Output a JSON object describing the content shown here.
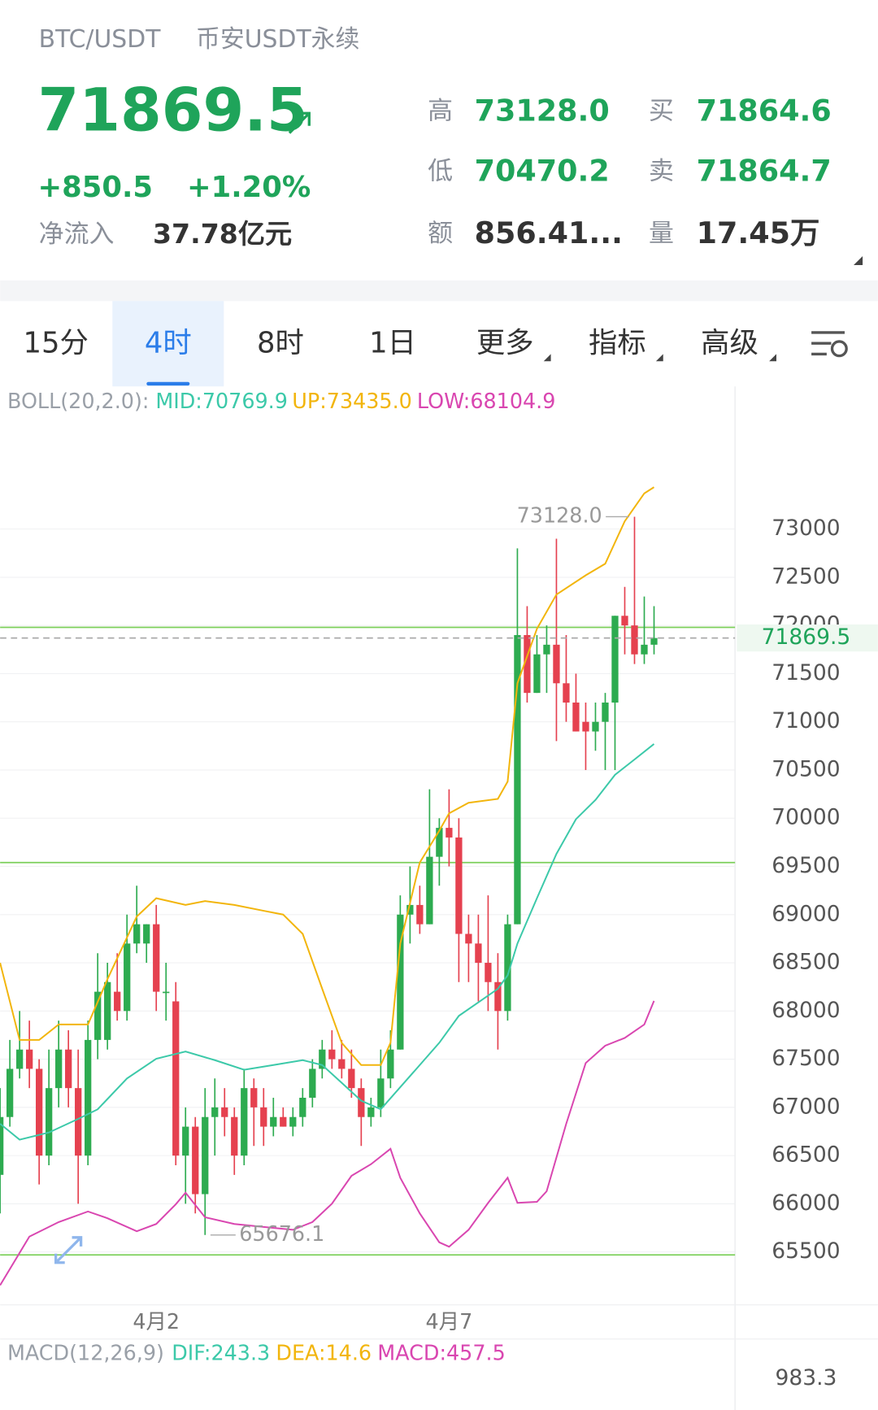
{
  "header": {
    "symbol": "BTC/USDT",
    "market": "币安USDT永续",
    "price": "71869.5",
    "change": "+850.5",
    "change_pct": "+1.20%",
    "inflow_label": "净流入",
    "inflow": "37.78亿元",
    "stats": [
      {
        "label": "高",
        "value": "73128.0"
      },
      {
        "label": "低",
        "value": "70470.2"
      },
      {
        "label": "额",
        "value": "856.41..."
      },
      {
        "label": "买",
        "value": "71864.6"
      },
      {
        "label": "卖",
        "value": "71864.7"
      },
      {
        "label": "量",
        "value": "17.45万"
      }
    ]
  },
  "tabs": [
    "15分",
    "4时",
    "8时",
    "1日",
    "更多",
    "指标",
    "高级"
  ],
  "selected_tab": 1,
  "chart_data": {
    "type": "candlestick",
    "indicator": "BOLL(20,2.0):",
    "up_color": "#2dab50",
    "down_color": "#e5414f",
    "xlim": [
      0,
      75.3
    ],
    "ylim": [
      64970,
      74200
    ],
    "yticks": [
      65500,
      66000,
      66500,
      67000,
      67500,
      68000,
      68500,
      69000,
      69500,
      70000,
      70500,
      71000,
      71500,
      72000,
      72500,
      73000
    ],
    "xticks": [
      {
        "value": 16,
        "label": "4月2"
      },
      {
        "value": 46,
        "label": "4月7"
      }
    ],
    "grid": true,
    "candles": {
      "open": [
        66300,
        66900,
        67400,
        67600,
        67400,
        66500,
        67200,
        67600,
        67200,
        66500,
        67700,
        67700,
        68200,
        68000,
        68700,
        68700,
        68900,
        68200,
        68100,
        66500,
        66800,
        66100,
        66900,
        67000,
        66900,
        66500,
        67200,
        67000,
        66800,
        66900,
        66800,
        66900,
        67100,
        67400,
        67600,
        67500,
        67400,
        67200,
        66900,
        67000,
        67300,
        67600,
        69000,
        69100,
        68900,
        69600,
        69900,
        69800,
        68800,
        68700,
        68500,
        68300,
        68000,
        68900,
        71900,
        71300,
        71700,
        71800,
        71400,
        71200,
        71000,
        70900,
        71000,
        71200,
        72100,
        72000,
        71700,
        71800
      ],
      "high": [
        67200,
        67700,
        68000,
        67900,
        67500,
        67600,
        67900,
        67800,
        67600,
        67900,
        68600,
        68500,
        68600,
        69000,
        69300,
        68900,
        69100,
        68500,
        68300,
        67000,
        66900,
        67200,
        67300,
        67200,
        67000,
        67400,
        67300,
        67200,
        67100,
        67000,
        67000,
        67200,
        67500,
        67700,
        67800,
        67700,
        67600,
        67300,
        67100,
        67600,
        67800,
        69200,
        69500,
        69300,
        70300,
        70000,
        70300,
        70000,
        69000,
        69000,
        69200,
        68600,
        69000,
        72800,
        72200,
        71900,
        72000,
        72900,
        71900,
        71500,
        71200,
        71200,
        71300,
        72100,
        72400,
        73128,
        72300,
        72200
      ],
      "low": [
        65900,
        66800,
        67300,
        67200,
        66200,
        66400,
        67000,
        67000,
        66000,
        66400,
        67500,
        67600,
        67900,
        67900,
        68600,
        68500,
        68000,
        67900,
        66400,
        66000,
        65900,
        65676.1,
        66500,
        66700,
        66300,
        66400,
        66600,
        66600,
        66700,
        66800,
        66700,
        66800,
        67000,
        67300,
        67400,
        67300,
        67100,
        66600,
        66800,
        66900,
        67200,
        67600,
        68700,
        68800,
        68900,
        69300,
        69500,
        68300,
        68300,
        68100,
        68000,
        67600,
        67900,
        68900,
        71200,
        71300,
        71300,
        70800,
        71000,
        70900,
        70500,
        70700,
        70500,
        70500,
        71700,
        71600,
        71600,
        71700
      ],
      "close": [
        66900,
        67400,
        67600,
        67400,
        66500,
        67200,
        67600,
        67200,
        66500,
        67700,
        68200,
        68300,
        68000,
        68700,
        68900,
        68900,
        68200,
        68200,
        66500,
        66800,
        66100,
        66900,
        67000,
        66900,
        66500,
        67200,
        67000,
        66800,
        66900,
        66800,
        66900,
        67100,
        67400,
        67600,
        67500,
        67400,
        67200,
        66900,
        67000,
        67300,
        67600,
        69000,
        69100,
        68900,
        69600,
        69900,
        69800,
        68800,
        68700,
        68500,
        68300,
        68000,
        68900,
        71900,
        71300,
        71700,
        71800,
        71400,
        71200,
        70900,
        70900,
        71000,
        71200,
        72100,
        72000,
        71700,
        71800,
        71869.5
      ]
    },
    "series": [
      {
        "name": "MID",
        "label": "MID:70769.9",
        "color": "#3cc9a9",
        "x": [
          0,
          2,
          5,
          8,
          10,
          13,
          16,
          19,
          22,
          25,
          28,
          31,
          33,
          35,
          37,
          39,
          41,
          43,
          45,
          47,
          49,
          51,
          52,
          53,
          55,
          57,
          59,
          61,
          63,
          65,
          67
        ],
        "values": [
          66830,
          66665,
          66740,
          66880,
          66980,
          67300,
          67505,
          67580,
          67490,
          67390,
          67440,
          67490,
          67440,
          67255,
          67070,
          66980,
          67210,
          67440,
          67670,
          67950,
          68090,
          68230,
          68370,
          68700,
          69170,
          69630,
          69990,
          70190,
          70450,
          70610,
          70769.9
        ]
      },
      {
        "name": "UP",
        "label": "UP:73435.0",
        "color": "#f2b50c",
        "x": [
          0,
          2,
          4,
          6,
          9,
          11,
          14,
          16,
          19,
          21,
          24,
          27,
          29,
          31,
          33,
          35,
          37,
          39,
          40,
          41,
          43,
          45,
          46,
          48,
          51,
          52,
          53,
          55,
          57,
          60,
          62,
          64,
          66,
          67
        ],
        "values": [
          68500,
          67700,
          67700,
          67860,
          67860,
          68330,
          68980,
          69170,
          69100,
          69140,
          69100,
          69040,
          69000,
          68800,
          68230,
          67670,
          67440,
          67440,
          67670,
          68700,
          69540,
          69870,
          70050,
          70160,
          70200,
          70380,
          71400,
          71965,
          72320,
          72520,
          72640,
          73080,
          73370,
          73435
        ]
      },
      {
        "name": "LOW",
        "label": "LOW:68104.9",
        "color": "#d946b0",
        "x": [
          0,
          3,
          6,
          9,
          11,
          14,
          16,
          18,
          19,
          21,
          24,
          27,
          30,
          32,
          34,
          36,
          38,
          40,
          41,
          43,
          45,
          46,
          48,
          50,
          52,
          53,
          55,
          56,
          58,
          60,
          62,
          64,
          66,
          67
        ],
        "values": [
          65155,
          65660,
          65810,
          65920,
          65850,
          65715,
          65790,
          65995,
          66115,
          65860,
          65790,
          65760,
          65730,
          65810,
          66000,
          66290,
          66410,
          66570,
          66270,
          65900,
          65600,
          65555,
          65730,
          66010,
          66270,
          66010,
          66020,
          66130,
          66830,
          67460,
          67640,
          67720,
          67860,
          68104.9
        ]
      }
    ],
    "price_lines": [
      71980,
      69540,
      65470
    ],
    "price_line_color": "#7ccf5a",
    "last_price": {
      "value": 71869.5,
      "label": "71869.5"
    },
    "high_mark": {
      "index": 65,
      "value": 73128,
      "label": "73128.0"
    },
    "low_mark": {
      "index": 21,
      "value": 65676.1,
      "label": "65676.1"
    }
  },
  "macd": {
    "title": "MACD(12,26,9)",
    "dif": "DIF:243.3",
    "dea": "DEA:14.6",
    "macd": "MACD:457.5",
    "axis_top": "983.3"
  }
}
